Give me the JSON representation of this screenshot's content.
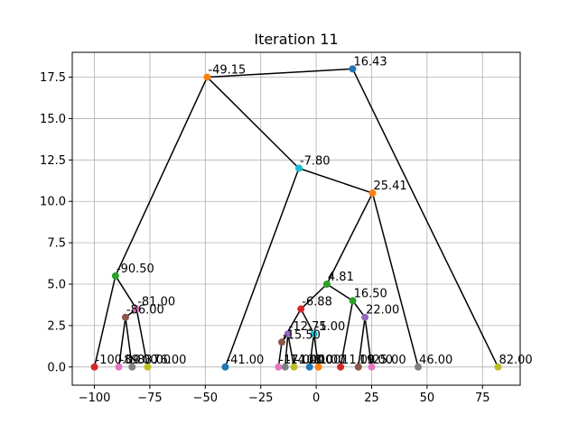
{
  "chart_data": {
    "type": "scatter",
    "title": "Iteration 11",
    "xlabel": "",
    "ylabel": "",
    "xlim": [
      -110,
      92
    ],
    "ylim": [
      -1.1,
      19.0
    ],
    "grid": true,
    "x_ticks": [
      -100,
      -75,
      -50,
      -25,
      0,
      25,
      50,
      75
    ],
    "x_tick_labels": [
      "−100",
      "−75",
      "−50",
      "−25",
      "0",
      "25",
      "50",
      "75"
    ],
    "y_ticks": [
      0.0,
      2.5,
      5.0,
      7.5,
      10.0,
      12.5,
      15.0,
      17.5
    ],
    "y_tick_labels": [
      "0.0",
      "2.5",
      "5.0",
      "7.5",
      "10.0",
      "12.5",
      "15.0",
      "17.5"
    ],
    "points": [
      {
        "id": "p0",
        "x": -100,
        "y": 0,
        "label": "-100.00",
        "color": "#d62728"
      },
      {
        "id": "p1",
        "x": -89,
        "y": 0,
        "label": "-89.00",
        "color": "#e377c2"
      },
      {
        "id": "p2",
        "x": -83,
        "y": 0,
        "label": "-83.00",
        "color": "#7f7f7f"
      },
      {
        "id": "p3",
        "x": -76,
        "y": 0,
        "label": "-76.00",
        "color": "#bcbd22"
      },
      {
        "id": "p4",
        "x": -41,
        "y": 0,
        "label": "-41.00",
        "color": "#1f77b4"
      },
      {
        "id": "p5",
        "x": -17,
        "y": 0,
        "label": "-17.00",
        "color": "#e377c2"
      },
      {
        "id": "p6",
        "x": -14,
        "y": 0,
        "label": "-14.00",
        "color": "#7f7f7f"
      },
      {
        "id": "p7",
        "x": -10,
        "y": 0,
        "label": "-10.00",
        "color": "#bcbd22"
      },
      {
        "id": "p8",
        "x": -3,
        "y": 0,
        "label": "-3.00",
        "color": "#1f77b4"
      },
      {
        "id": "p9",
        "x": 1,
        "y": 0,
        "label": "1.00",
        "color": "#ff7f0e"
      },
      {
        "id": "p10",
        "x": 11,
        "y": 0,
        "label": "11.00",
        "color": "#d62728"
      },
      {
        "id": "p11",
        "x": 19,
        "y": 0,
        "label": "19.00",
        "color": "#8c564b"
      },
      {
        "id": "p12",
        "x": 25,
        "y": 0,
        "label": "25.00",
        "color": "#e377c2"
      },
      {
        "id": "p13",
        "x": 46,
        "y": 0,
        "label": "46.00",
        "color": "#7f7f7f"
      },
      {
        "id": "p14",
        "x": 82,
        "y": 0,
        "label": "82.00",
        "color": "#bcbd22"
      },
      {
        "id": "n15",
        "x": -86,
        "y": 3.0,
        "label": "-86.00",
        "color": "#8c564b"
      },
      {
        "id": "n16",
        "x": -81,
        "y": 3.5,
        "label": "-81.00",
        "color": "#e377c2"
      },
      {
        "id": "n17",
        "x": -90.5,
        "y": 5.5,
        "label": "-90.50",
        "color": "#2ca02c"
      },
      {
        "id": "n18",
        "x": -15.5,
        "y": 1.5,
        "label": "-15.50",
        "color": "#8c564b"
      },
      {
        "id": "n19",
        "x": -12.75,
        "y": 2.0,
        "label": "-12.75",
        "color": "#9467bd"
      },
      {
        "id": "n20",
        "x": -1,
        "y": 2.0,
        "label": "-1.00",
        "color": "#17becf"
      },
      {
        "id": "n21",
        "x": -6.88,
        "y": 3.5,
        "label": "-6.88",
        "color": "#d62728"
      },
      {
        "id": "n22",
        "x": 22,
        "y": 3.0,
        "label": "22.00",
        "color": "#9467bd"
      },
      {
        "id": "n23",
        "x": 16.5,
        "y": 4.0,
        "label": "16.50",
        "color": "#2ca02c"
      },
      {
        "id": "n24",
        "x": 4.81,
        "y": 5.0,
        "label": "4.81",
        "color": "#2ca02c"
      },
      {
        "id": "n25",
        "x": 25.41,
        "y": 10.5,
        "label": "25.41",
        "color": "#ff7f0e"
      },
      {
        "id": "n26",
        "x": -7.8,
        "y": 12.0,
        "label": "-7.80",
        "color": "#17becf"
      },
      {
        "id": "n27",
        "x": -49.15,
        "y": 17.5,
        "label": "-49.15",
        "color": "#ff7f0e"
      },
      {
        "id": "n28",
        "x": 16.43,
        "y": 18.0,
        "label": "16.43",
        "color": "#1f77b4"
      }
    ],
    "edges": [
      [
        "n28",
        "n27"
      ],
      [
        "n28",
        "p14"
      ],
      [
        "n27",
        "n17"
      ],
      [
        "n27",
        "n26"
      ],
      [
        "n26",
        "p4"
      ],
      [
        "n26",
        "n25"
      ],
      [
        "n25",
        "n24"
      ],
      [
        "n25",
        "p13"
      ],
      [
        "n17",
        "p0"
      ],
      [
        "n17",
        "n16"
      ],
      [
        "n16",
        "n15"
      ],
      [
        "n16",
        "p3"
      ],
      [
        "n15",
        "p1"
      ],
      [
        "n15",
        "p2"
      ],
      [
        "n24",
        "n21"
      ],
      [
        "n24",
        "n23"
      ],
      [
        "n21",
        "n18"
      ],
      [
        "n21",
        "n20"
      ],
      [
        "n18",
        "p5"
      ],
      [
        "n18",
        "n19"
      ],
      [
        "n19",
        "p6"
      ],
      [
        "n19",
        "p7"
      ],
      [
        "n20",
        "p8"
      ],
      [
        "n20",
        "p9"
      ],
      [
        "n23",
        "p10"
      ],
      [
        "n23",
        "n22"
      ],
      [
        "n22",
        "p11"
      ],
      [
        "n22",
        "p12"
      ]
    ]
  }
}
